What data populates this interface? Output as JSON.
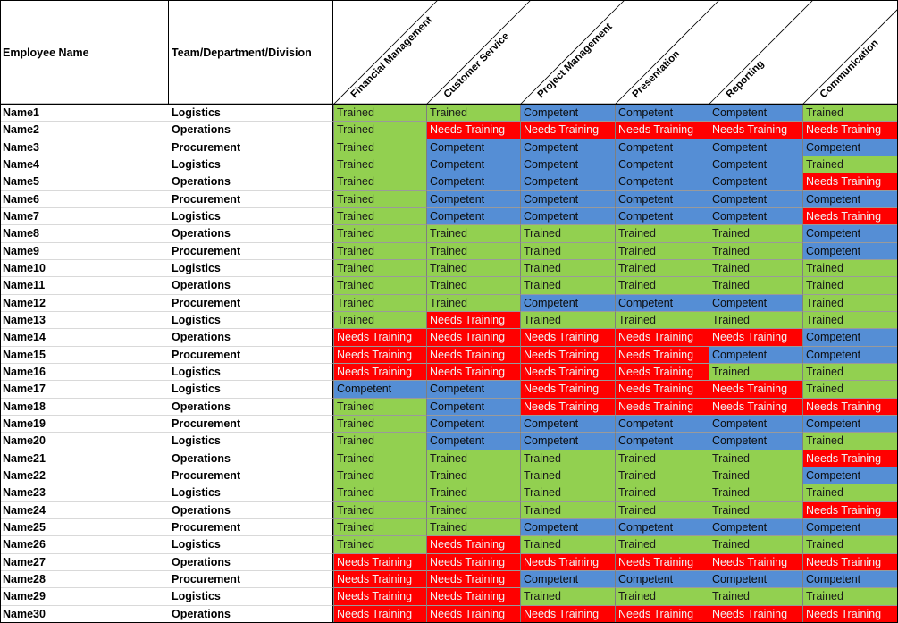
{
  "headers": {
    "employee": "Employee Name",
    "team": "Team/Department/Division",
    "skills": [
      "Financial Management",
      "Customer Service",
      "Project Management",
      "Presentation",
      "Reporting",
      "Communication"
    ]
  },
  "status_colors": {
    "Trained": "#92d050",
    "Competent": "#558ed5",
    "Needs Training": "#ff0000"
  },
  "rows": [
    {
      "name": "Name1",
      "team": "Logistics",
      "skills": [
        "Trained",
        "Trained",
        "Competent",
        "Competent",
        "Competent",
        "Trained"
      ]
    },
    {
      "name": "Name2",
      "team": "Operations",
      "skills": [
        "Trained",
        "Needs Training",
        "Needs Training",
        "Needs Training",
        "Needs Training",
        "Needs Training"
      ]
    },
    {
      "name": "Name3",
      "team": "Procurement",
      "skills": [
        "Trained",
        "Competent",
        "Competent",
        "Competent",
        "Competent",
        "Competent"
      ]
    },
    {
      "name": "Name4",
      "team": "Logistics",
      "skills": [
        "Trained",
        "Competent",
        "Competent",
        "Competent",
        "Competent",
        "Trained"
      ]
    },
    {
      "name": "Name5",
      "team": "Operations",
      "skills": [
        "Trained",
        "Competent",
        "Competent",
        "Competent",
        "Competent",
        "Needs Training"
      ]
    },
    {
      "name": "Name6",
      "team": "Procurement",
      "skills": [
        "Trained",
        "Competent",
        "Competent",
        "Competent",
        "Competent",
        "Competent"
      ]
    },
    {
      "name": "Name7",
      "team": "Logistics",
      "skills": [
        "Trained",
        "Competent",
        "Competent",
        "Competent",
        "Competent",
        "Needs Training"
      ]
    },
    {
      "name": "Name8",
      "team": "Operations",
      "skills": [
        "Trained",
        "Trained",
        "Trained",
        "Trained",
        "Trained",
        "Competent"
      ]
    },
    {
      "name": "Name9",
      "team": "Procurement",
      "skills": [
        "Trained",
        "Trained",
        "Trained",
        "Trained",
        "Trained",
        "Competent"
      ]
    },
    {
      "name": "Name10",
      "team": "Logistics",
      "skills": [
        "Trained",
        "Trained",
        "Trained",
        "Trained",
        "Trained",
        "Trained"
      ]
    },
    {
      "name": "Name11",
      "team": "Operations",
      "skills": [
        "Trained",
        "Trained",
        "Trained",
        "Trained",
        "Trained",
        "Trained"
      ]
    },
    {
      "name": "Name12",
      "team": "Procurement",
      "skills": [
        "Trained",
        "Trained",
        "Competent",
        "Competent",
        "Competent",
        "Trained"
      ]
    },
    {
      "name": "Name13",
      "team": "Logistics",
      "skills": [
        "Trained",
        "Needs Training",
        "Trained",
        "Trained",
        "Trained",
        "Trained"
      ]
    },
    {
      "name": "Name14",
      "team": "Operations",
      "skills": [
        "Needs Training",
        "Needs Training",
        "Needs Training",
        "Needs Training",
        "Needs Training",
        "Competent"
      ]
    },
    {
      "name": "Name15",
      "team": "Procurement",
      "skills": [
        "Needs Training",
        "Needs Training",
        "Needs Training",
        "Needs Training",
        "Competent",
        "Competent"
      ]
    },
    {
      "name": "Name16",
      "team": "Logistics",
      "skills": [
        "Needs Training",
        "Needs Training",
        "Needs Training",
        "Needs Training",
        "Trained",
        "Trained"
      ]
    },
    {
      "name": "Name17",
      "team": "Logistics",
      "skills": [
        "Competent",
        "Competent",
        "Needs Training",
        "Needs Training",
        "Needs Training",
        "Trained"
      ]
    },
    {
      "name": "Name18",
      "team": "Operations",
      "skills": [
        "Trained",
        "Competent",
        "Needs Training",
        "Needs Training",
        "Needs Training",
        "Needs Training"
      ]
    },
    {
      "name": "Name19",
      "team": "Procurement",
      "skills": [
        "Trained",
        "Competent",
        "Competent",
        "Competent",
        "Competent",
        "Competent"
      ]
    },
    {
      "name": "Name20",
      "team": "Logistics",
      "skills": [
        "Trained",
        "Competent",
        "Competent",
        "Competent",
        "Competent",
        "Trained"
      ]
    },
    {
      "name": "Name21",
      "team": "Operations",
      "skills": [
        "Trained",
        "Trained",
        "Trained",
        "Trained",
        "Trained",
        "Needs Training"
      ]
    },
    {
      "name": "Name22",
      "team": "Procurement",
      "skills": [
        "Trained",
        "Trained",
        "Trained",
        "Trained",
        "Trained",
        "Competent"
      ]
    },
    {
      "name": "Name23",
      "team": "Logistics",
      "skills": [
        "Trained",
        "Trained",
        "Trained",
        "Trained",
        "Trained",
        "Trained"
      ]
    },
    {
      "name": "Name24",
      "team": "Operations",
      "skills": [
        "Trained",
        "Trained",
        "Trained",
        "Trained",
        "Trained",
        "Needs Training"
      ]
    },
    {
      "name": "Name25",
      "team": "Procurement",
      "skills": [
        "Trained",
        "Trained",
        "Competent",
        "Competent",
        "Competent",
        "Competent"
      ]
    },
    {
      "name": "Name26",
      "team": "Logistics",
      "skills": [
        "Trained",
        "Needs Training",
        "Trained",
        "Trained",
        "Trained",
        "Trained"
      ]
    },
    {
      "name": "Name27",
      "team": "Operations",
      "skills": [
        "Needs Training",
        "Needs Training",
        "Needs Training",
        "Needs Training",
        "Needs Training",
        "Needs Training"
      ]
    },
    {
      "name": "Name28",
      "team": "Procurement",
      "skills": [
        "Needs Training",
        "Needs Training",
        "Competent",
        "Competent",
        "Competent",
        "Competent"
      ]
    },
    {
      "name": "Name29",
      "team": "Logistics",
      "skills": [
        "Needs Training",
        "Needs Training",
        "Trained",
        "Trained",
        "Trained",
        "Trained"
      ]
    },
    {
      "name": "Name30",
      "team": "Operations",
      "skills": [
        "Needs Training",
        "Needs Training",
        "Needs Training",
        "Needs Training",
        "Needs Training",
        "Needs Training"
      ]
    }
  ]
}
